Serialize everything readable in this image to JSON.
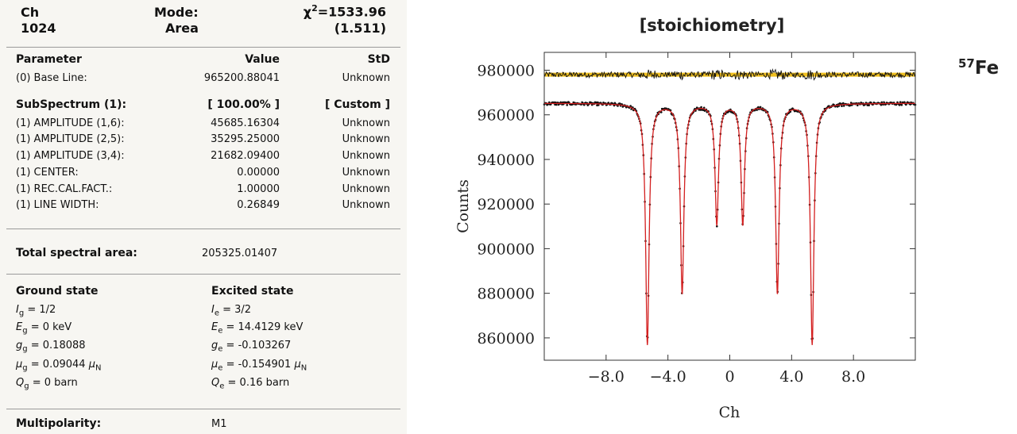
{
  "header": {
    "ch_label": "Ch",
    "ch_value": "1024",
    "mode_label": "Mode:",
    "mode_value": "Area",
    "chi_symbol": "χ",
    "chi_power": "2",
    "chi_value": "=1533.96",
    "chi_reduced": "(1.511)"
  },
  "params": {
    "col_parameter": "Parameter",
    "col_value": "Value",
    "col_std": "StD",
    "baseline": {
      "name": "(0) Base Line:",
      "value": "965200.88041",
      "std": "Unknown"
    },
    "subspectrum": {
      "name": "SubSpectrum (1):",
      "value": "[ 100.00% ]",
      "std": "[ Custom ]"
    },
    "rows": [
      {
        "name": "(1) AMPLITUDE (1,6):",
        "value": "45685.16304",
        "std": "Unknown"
      },
      {
        "name": "(1) AMPLITUDE (2,5):",
        "value": "35295.25000",
        "std": "Unknown"
      },
      {
        "name": "(1) AMPLITUDE (3,4):",
        "value": "21682.09400",
        "std": "Unknown"
      },
      {
        "name": "(1) CENTER:",
        "value": "0.00000",
        "std": "Unknown"
      },
      {
        "name": "(1) REC.CAL.FACT.:",
        "value": "1.00000",
        "std": "Unknown"
      },
      {
        "name": "(1) LINE WIDTH:",
        "value": "0.26849",
        "std": "Unknown"
      }
    ]
  },
  "total_area": {
    "label": "Total spectral area:",
    "value": "205325.01407"
  },
  "ground": {
    "title": "Ground state",
    "I": {
      "sym": "I",
      "sub": "g",
      "val": " = 1/2"
    },
    "E": {
      "sym": "E",
      "sub": "g",
      "val": " = 0 keV"
    },
    "g": {
      "sym": "g",
      "sub": "g",
      "val": " = 0.18088"
    },
    "mu": {
      "sym": "μ",
      "sub": "g",
      "val": " = 0.09044 ",
      "unit": "μ",
      "unit_sub": "N"
    },
    "Q": {
      "sym": "Q",
      "sub": "g",
      "val": " = 0 barn"
    }
  },
  "excited": {
    "title": "Excited state",
    "I": {
      "sym": "I",
      "sub": "e",
      "val": " = 3/2"
    },
    "E": {
      "sym": "E",
      "sub": "e",
      "val": " = 14.4129 keV"
    },
    "g": {
      "sym": "g",
      "sub": "e",
      "val": " = -0.103267"
    },
    "mu": {
      "sym": "μ",
      "sub": "e",
      "val": " = -0.154901 ",
      "unit": "μ",
      "unit_sub": "N"
    },
    "Q": {
      "sym": "Q",
      "sub": "e",
      "val": " = 0.16 barn"
    }
  },
  "multipolarity": {
    "label": "Multipolarity:",
    "value": "M1"
  },
  "isotope": {
    "mass": "57",
    "element": "Fe"
  },
  "chart_data": {
    "type": "line",
    "title": "[stoichiometry]",
    "xlabel": "Ch",
    "ylabel": "Counts",
    "xlim": [
      -12.0,
      12.0
    ],
    "ylim": [
      850000,
      988000
    ],
    "xticks": [
      -8.0,
      -4.0,
      0,
      4.0,
      8.0
    ],
    "xtick_labels": [
      "−8.0",
      "−4.0",
      "0",
      "4.0",
      "8.0"
    ],
    "yticks": [
      980000,
      960000,
      940000,
      920000,
      900000,
      880000,
      860000
    ],
    "yticks_labels": [
      "980000",
      "960000",
      "940000",
      "920000",
      "900000",
      "880000",
      "860000"
    ],
    "baseline": 965200,
    "line_width": 0.26849,
    "lines": [
      {
        "position": -5.33,
        "depth": 108000
      },
      {
        "position": -3.08,
        "depth": 85000
      },
      {
        "position": -0.84,
        "depth": 54000
      },
      {
        "position": 0.84,
        "depth": 54000
      },
      {
        "position": 3.08,
        "depth": 85000
      },
      {
        "position": 5.33,
        "depth": 108000
      }
    ],
    "residual_offset": 978000,
    "series": [
      {
        "role": "data",
        "color": "#111111"
      },
      {
        "role": "fit",
        "color": "#d42020"
      },
      {
        "role": "residual",
        "color": "#111111"
      },
      {
        "role": "residual-band",
        "color": "#f0c020"
      }
    ],
    "grid": false
  }
}
